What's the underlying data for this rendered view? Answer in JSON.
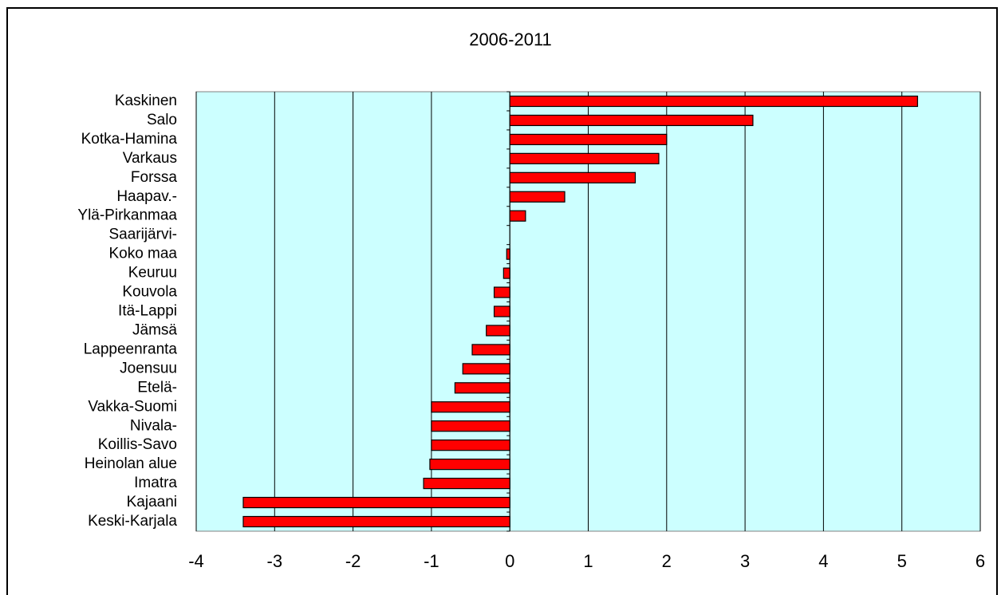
{
  "chart_data": {
    "type": "barh",
    "title": "2006-2011",
    "categories": [
      "Kaskinen",
      "Salo",
      "Kotka-Hamina",
      "Varkaus",
      "Forssa",
      "Haapav.-",
      "Ylä-Pirkanmaa",
      "Saarijärvi-",
      "Koko maa",
      "Keuruu",
      "Kouvola",
      "Itä-Lappi",
      "Jämsä",
      "Lappeenranta",
      "Joensuu",
      "Etelä-",
      "Vakka-Suomi",
      "Nivala-",
      "Koillis-Savo",
      "Heinolan alue",
      "Imatra",
      "Kajaani",
      "Keski-Karjala"
    ],
    "values": [
      5.2,
      3.1,
      2.0,
      1.9,
      1.6,
      0.7,
      0.2,
      0,
      -0.04,
      -0.08,
      -0.2,
      -0.2,
      -0.3,
      -0.48,
      -0.6,
      -0.7,
      -1.0,
      -1.0,
      -1.0,
      -1.02,
      -1.1,
      -3.4,
      -3.4
    ],
    "color": "#ff0000",
    "xlim": [
      -4,
      6
    ],
    "xticks": [
      -4,
      -3,
      -2,
      -1,
      0,
      1,
      2,
      3,
      4,
      5,
      6
    ],
    "grid": true
  }
}
